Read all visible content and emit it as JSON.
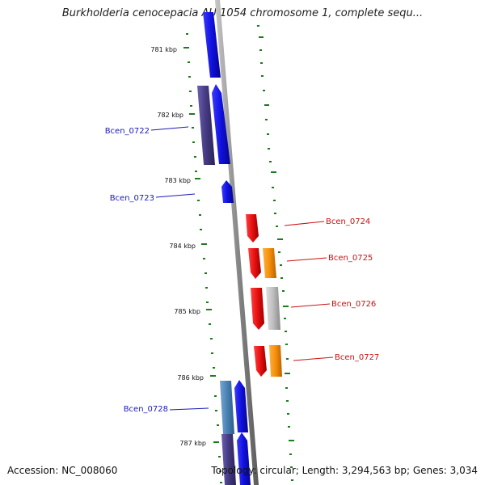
{
  "title": "Burkholderia cenocepacia AU 1054 chromosome 1, complete sequ...",
  "footer": {
    "accession": "Accession: NC_008060",
    "summary": "Topology: circular; Length: 3,294,563 bp; Genes: 3,034"
  },
  "kbp_labels": [
    "781 kbp",
    "782 kbp",
    "783 kbp",
    "784 kbp",
    "785 kbp",
    "786 kbp",
    "787 kbp"
  ],
  "gene_labels": {
    "bcen_0722": "Bcen_0722",
    "bcen_0723": "Bcen_0723",
    "bcen_0724": "Bcen_0724",
    "bcen_0725": "Bcen_0725",
    "bcen_0726": "Bcen_0726",
    "bcen_0727": "Bcen_0727",
    "bcen_0728": "Bcen_0728"
  },
  "colors": {
    "forward_gene": "#1515e6",
    "forward_gene_alt": "#4a3f8a",
    "forward_gene_light": "#4f86b8",
    "reverse_gene": "#e81010",
    "reverse_gene_orange": "#f58f0a",
    "reverse_gene_gray": "#b8b8b8",
    "forward_label": "#1a1ab8",
    "reverse_label": "#cc1111",
    "tick": "#1d7a1d",
    "backbone": "#8a8a8a"
  }
}
